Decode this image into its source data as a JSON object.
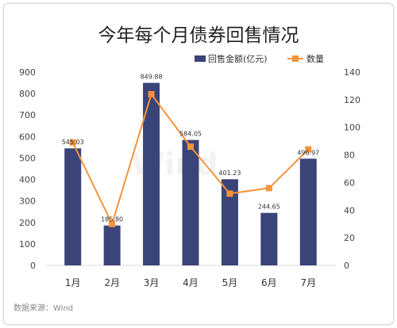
{
  "chart_data": {
    "type": "bar",
    "title": "今年每个月债券回售情况",
    "categories": [
      "1月",
      "2月",
      "3月",
      "4月",
      "5月",
      "6月",
      "7月"
    ],
    "series": [
      {
        "name": "回售金额(亿元)",
        "type": "bar",
        "axis": "left",
        "values": [
          545.03,
          185.8,
          849.88,
          584.05,
          401.23,
          244.65,
          496.97
        ],
        "labels": [
          "545.03",
          "185.80",
          "849.88",
          "584.05",
          "401.23",
          "244.65",
          "496.97"
        ]
      },
      {
        "name": "数量",
        "type": "line",
        "axis": "right",
        "values": [
          89,
          30,
          124,
          86,
          52,
          56,
          84
        ]
      }
    ],
    "y_left": {
      "min": 0,
      "max": 900,
      "ticks": [
        0,
        100,
        200,
        300,
        400,
        500,
        600,
        700,
        800,
        900
      ]
    },
    "y_right": {
      "min": 0,
      "max": 140,
      "ticks": [
        0,
        20,
        40,
        60,
        80,
        100,
        120,
        140
      ]
    },
    "legend_position": "top-right",
    "grid": false,
    "watermark": "Wind",
    "colors": {
      "bar": "#3b4478",
      "line": "#f4933b"
    }
  },
  "source": "数据来源：Wind"
}
